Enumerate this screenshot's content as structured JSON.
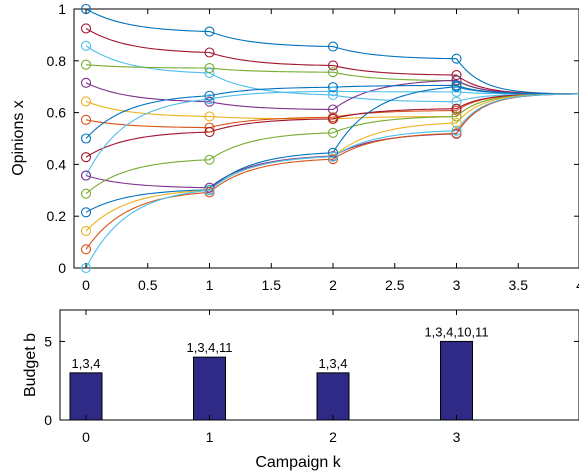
{
  "chart_data": [
    {
      "type": "line",
      "xlabel": "",
      "ylabel": "Opinions x",
      "xlim": [
        0,
        4
      ],
      "ylim": [
        0,
        1
      ],
      "xticks": [
        "0",
        "0.5",
        "1",
        "1.5",
        "2",
        "2.5",
        "3",
        "3.5",
        "4"
      ],
      "yticks": [
        "0",
        "0.2",
        "0.4",
        "0.6",
        "0.8",
        "1"
      ],
      "grid": false,
      "campaign_times": [
        0,
        1,
        2,
        3
      ],
      "consensus_value": 0.672,
      "series": [
        {
          "color": "#0072BD",
          "campaign_points": [
            [
              0,
              1.0
            ],
            [
              1,
              0.913
            ],
            [
              2,
              0.855
            ],
            [
              3,
              0.808
            ]
          ]
        },
        {
          "color": "#A2142F",
          "campaign_points": [
            [
              0,
              0.925
            ],
            [
              1,
              0.832
            ],
            [
              2,
              0.782
            ],
            [
              3,
              0.745
            ]
          ]
        },
        {
          "color": "#4DBEEE",
          "campaign_points": [
            [
              0,
              0.858
            ],
            [
              1,
              0.753
            ],
            [
              2,
              0.668
            ],
            [
              3,
              0.642
            ]
          ]
        },
        {
          "color": "#77AC30",
          "campaign_points": [
            [
              0,
              0.785
            ],
            [
              1,
              0.772
            ],
            [
              2,
              0.756
            ],
            [
              3,
              0.723
            ]
          ]
        },
        {
          "color": "#7E2F8E",
          "campaign_points": [
            [
              0,
              0.715
            ],
            [
              1,
              0.642
            ],
            [
              2,
              0.612
            ],
            [
              3,
              0.725
            ]
          ]
        },
        {
          "color": "#EDB120",
          "campaign_points": [
            [
              0,
              0.643
            ],
            [
              1,
              0.585
            ],
            [
              2,
              0.575
            ],
            [
              3,
              0.585
            ]
          ]
        },
        {
          "color": "#D95319",
          "campaign_points": [
            [
              0,
              0.572
            ],
            [
              1,
              0.542
            ],
            [
              2,
              0.582
            ],
            [
              3,
              0.608
            ]
          ]
        },
        {
          "color": "#0072BD",
          "campaign_points": [
            [
              0,
              0.5
            ],
            [
              1,
              0.665
            ],
            [
              2,
              0.698
            ],
            [
              3,
              0.705
            ]
          ]
        },
        {
          "color": "#A2142F",
          "campaign_points": [
            [
              0,
              0.428
            ],
            [
              1,
              0.525
            ],
            [
              2,
              0.576
            ],
            [
              3,
              0.615
            ]
          ]
        },
        {
          "color": "#4DBEEE",
          "campaign_points": [
            [
              0,
              0.357
            ],
            [
              1,
              0.652
            ],
            [
              2,
              0.682
            ],
            [
              3,
              0.68
            ]
          ]
        },
        {
          "color": "#7E2F8E",
          "campaign_points": [
            [
              0,
              0.357
            ],
            [
              1,
              0.31
            ],
            [
              2,
              0.432
            ],
            [
              3,
              0.518
            ]
          ]
        },
        {
          "color": "#77AC30",
          "campaign_points": [
            [
              0,
              0.287
            ],
            [
              1,
              0.418
            ],
            [
              2,
              0.522
            ],
            [
              3,
              0.585
            ]
          ]
        },
        {
          "color": "#0072BD",
          "campaign_points": [
            [
              0,
              0.215
            ],
            [
              1,
              0.302
            ],
            [
              2,
              0.445
            ],
            [
              3,
              0.7
            ]
          ]
        },
        {
          "color": "#EDB120",
          "campaign_points": [
            [
              0,
              0.143
            ],
            [
              1,
              0.3
            ],
            [
              2,
              0.43
            ],
            [
              3,
              0.56
            ]
          ]
        },
        {
          "color": "#D95319",
          "campaign_points": [
            [
              0,
              0.072
            ],
            [
              1,
              0.292
            ],
            [
              2,
              0.42
            ],
            [
              3,
              0.52
            ]
          ]
        },
        {
          "color": "#4DBEEE",
          "campaign_points": [
            [
              0,
              0.0
            ],
            [
              1,
              0.3
            ],
            [
              2,
              0.43
            ],
            [
              3,
              0.53
            ]
          ]
        }
      ]
    },
    {
      "type": "bar",
      "xlabel": "Campaign k",
      "ylabel": "Budget b",
      "categories": [
        "0",
        "1",
        "2",
        "3"
      ],
      "values": [
        3,
        4,
        3,
        5
      ],
      "data_labels": [
        "1,3,4",
        "1,3,4,11",
        "1,3,4",
        "1,3,4,10,11"
      ],
      "xlim": [
        -0.3,
        3.95
      ],
      "ylim": [
        0,
        7
      ],
      "yticks": [
        "0",
        "5"
      ],
      "bar_color": "#2E2A85",
      "grid": false
    }
  ]
}
